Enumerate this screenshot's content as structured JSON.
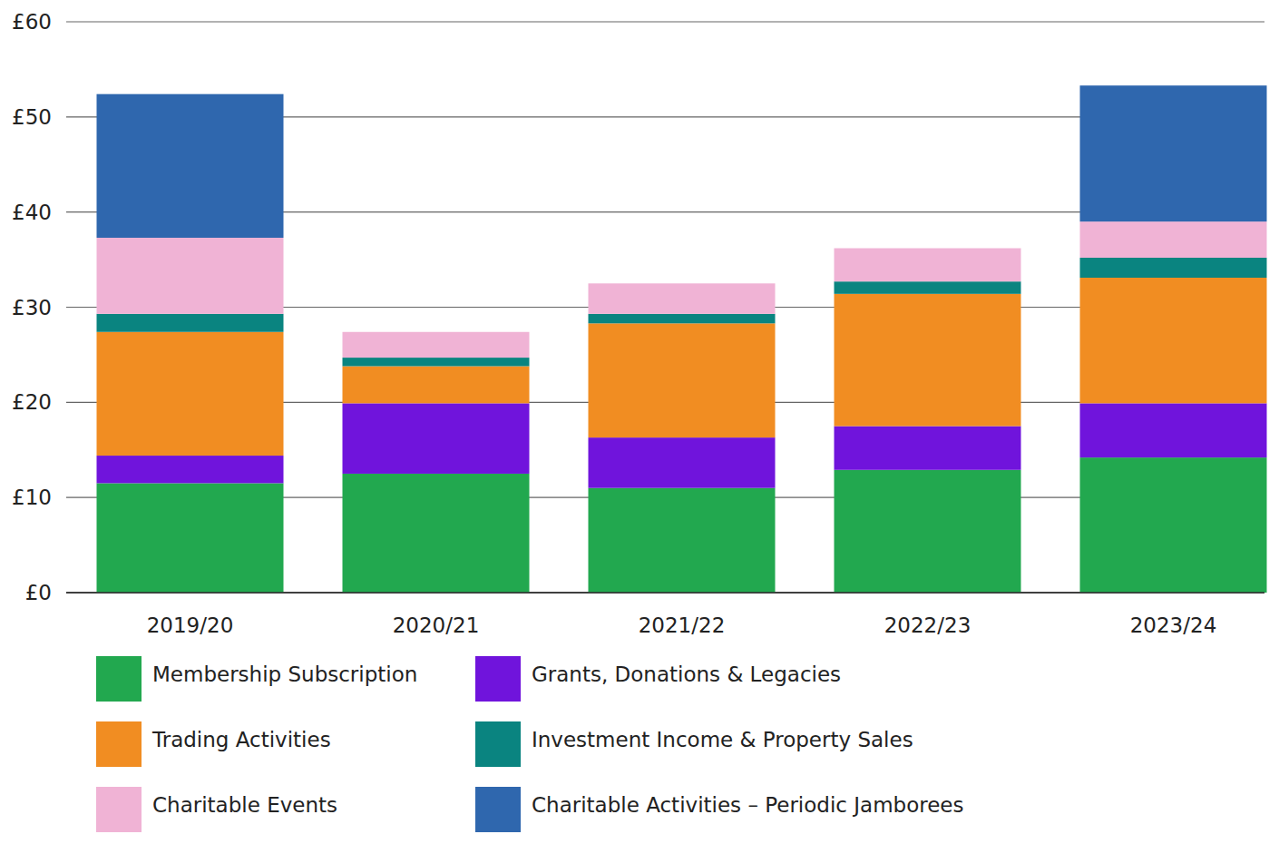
{
  "chart_data": {
    "type": "bar",
    "stacked": true,
    "grid": true,
    "categories": [
      "2019/20",
      "2020/21",
      "2021/22",
      "2022/23",
      "2023/24"
    ],
    "series": [
      {
        "name": "Membership Subscription",
        "color": "#22a84f",
        "values": [
          11.5,
          12.5,
          11.0,
          12.9,
          14.2
        ]
      },
      {
        "name": "Grants, Donations & Legacies",
        "color": "#7014dc",
        "values": [
          2.9,
          7.4,
          5.3,
          4.6,
          5.7
        ]
      },
      {
        "name": "Trading Activities",
        "color": "#f18d22",
        "values": [
          13.0,
          3.9,
          12.0,
          13.9,
          13.2
        ]
      },
      {
        "name": "Investment Income & Property Sales",
        "color": "#0a8480",
        "values": [
          1.9,
          0.9,
          1.0,
          1.3,
          2.1
        ]
      },
      {
        "name": "Charitable Events",
        "color": "#f0b3d5",
        "values": [
          8.0,
          2.7,
          3.2,
          3.5,
          3.8
        ]
      },
      {
        "name": "Charitable Activities – Periodic Jamborees",
        "color": "#2f67ae",
        "values": [
          15.1,
          0,
          0,
          0,
          14.3
        ]
      }
    ],
    "ylim": [
      0,
      60
    ],
    "yticks": [
      {
        "value": 0,
        "label": "£0"
      },
      {
        "value": 10,
        "label": "£10"
      },
      {
        "value": 20,
        "label": "£20"
      },
      {
        "value": 30,
        "label": "£30"
      },
      {
        "value": 40,
        "label": "£40"
      },
      {
        "value": 50,
        "label": "£50"
      },
      {
        "value": 60,
        "label": "£60"
      }
    ]
  }
}
